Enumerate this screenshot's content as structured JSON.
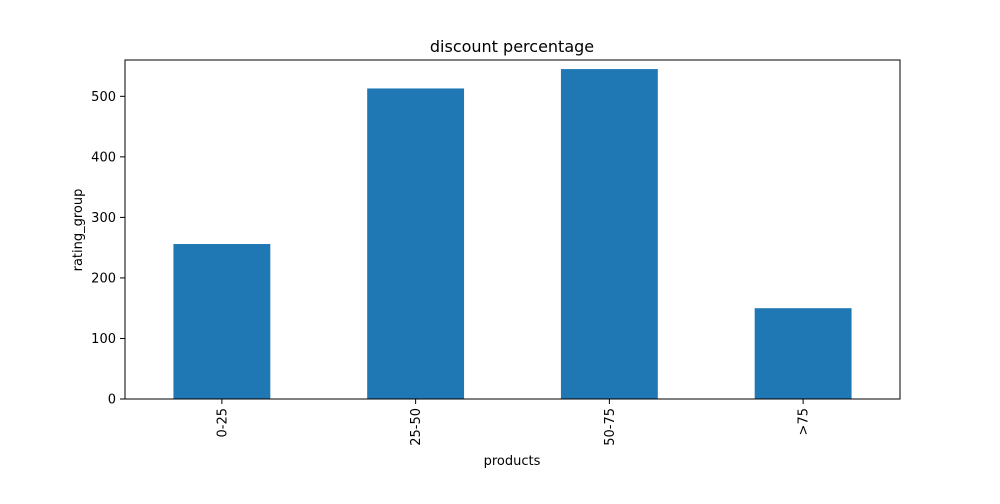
{
  "chart_data": {
    "type": "bar",
    "title": "discount percentage",
    "xlabel": "products",
    "ylabel": "rating_group",
    "categories": [
      "0-25",
      "25-50",
      "50-75",
      ">75"
    ],
    "values": [
      256,
      513,
      545,
      150
    ],
    "ylim": [
      0,
      560
    ],
    "yticks": [
      0,
      100,
      200,
      300,
      400,
      500
    ],
    "grid": false,
    "legend": "none",
    "bar_color": "#1f77b4",
    "axis_color": "#000000"
  }
}
